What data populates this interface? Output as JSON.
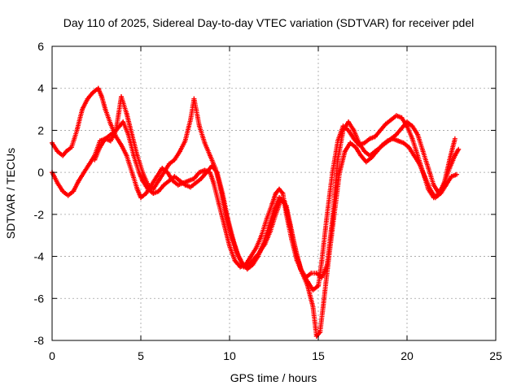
{
  "chart_data": {
    "type": "scatter",
    "title": "Day 110 of 2025, Sidereal Day-to-day VTEC variation (SDTVAR) for receiver pdel",
    "xlabel": "GPS time / hours",
    "ylabel": "SDTVAR / TECUs",
    "xlim": [
      0,
      25
    ],
    "ylim": [
      -8,
      6
    ],
    "xticks": [
      "0",
      "5",
      "10",
      "15",
      "20",
      "25"
    ],
    "yticks": [
      "-8",
      "-6",
      "-4",
      "-2",
      "0",
      "2",
      "4",
      "6"
    ],
    "grid": true,
    "marker": "plus",
    "color": "#ff0000",
    "series": [
      {
        "x": [
          0.0,
          0.3,
          0.6,
          0.8,
          1.1,
          1.4,
          1.7,
          2.0,
          2.3,
          2.6,
          2.8,
          3.0,
          3.3,
          3.6,
          3.9,
          4.2,
          4.5,
          4.8,
          5.0,
          5.3,
          5.6,
          5.9,
          6.2,
          6.5,
          6.8,
          7.1,
          7.4,
          7.7,
          8.0,
          8.3,
          8.6,
          8.9,
          9.1,
          9.4,
          9.7,
          10.0,
          10.3,
          10.6,
          10.9,
          11.2,
          11.5,
          11.8,
          12.1,
          12.4,
          12.6,
          12.8,
          13.0,
          13.2,
          13.5,
          13.8,
          14.1,
          14.4,
          14.7,
          15.0,
          15.2,
          15.5,
          15.8,
          16.1,
          16.4,
          16.7,
          17.0,
          17.3,
          17.6,
          17.9,
          18.2,
          18.5,
          18.8,
          19.1,
          19.4,
          19.7,
          20.0,
          20.3,
          20.6,
          20.9,
          21.2,
          21.5,
          21.8,
          22.1,
          22.4,
          22.7,
          22.9
        ],
        "y": [
          1.4,
          1.0,
          0.8,
          1.0,
          1.2,
          2.0,
          3.0,
          3.5,
          3.8,
          4.0,
          3.6,
          3.0,
          2.3,
          1.7,
          1.3,
          0.8,
          0.0,
          -0.8,
          -1.2,
          -1.0,
          -0.6,
          -0.2,
          0.2,
          0.0,
          -0.4,
          -0.6,
          -0.5,
          -0.4,
          -0.3,
          0.0,
          0.1,
          0.0,
          -0.5,
          -1.5,
          -2.5,
          -3.5,
          -4.2,
          -4.5,
          -4.4,
          -4.0,
          -3.6,
          -3.0,
          -2.2,
          -1.5,
          -1.0,
          -0.8,
          -1.0,
          -2.0,
          -3.2,
          -4.2,
          -4.8,
          -5.2,
          -5.6,
          -5.4,
          -4.2,
          -2.0,
          0.0,
          1.5,
          2.2,
          2.0,
          1.6,
          1.3,
          1.4,
          1.6,
          1.7,
          2.0,
          2.3,
          2.5,
          2.7,
          2.6,
          2.2,
          1.6,
          0.8,
          0.0,
          -0.8,
          -1.2,
          -1.0,
          -0.5,
          0.2,
          0.8,
          1.1
        ]
      },
      {
        "x": [
          0.0,
          0.3,
          0.6,
          0.9,
          1.2,
          1.5,
          1.8,
          2.1,
          2.4,
          2.7,
          3.0,
          3.3,
          3.6,
          3.8,
          4.0,
          4.3,
          4.6,
          4.9,
          5.1,
          5.4,
          5.7,
          6.0,
          6.3,
          6.6,
          6.9,
          7.2,
          7.5,
          7.8,
          8.1,
          8.4,
          8.7,
          9.0,
          9.3,
          9.6,
          9.9,
          10.2,
          10.5,
          10.8,
          11.1,
          11.4,
          11.7,
          12.0,
          12.3,
          12.6,
          12.9,
          13.2,
          13.5,
          13.8,
          14.1,
          14.4,
          14.7,
          14.9,
          15.1,
          15.3,
          15.6,
          15.9,
          16.2,
          16.5,
          16.8,
          17.1,
          17.4,
          17.7,
          18.0,
          18.3,
          18.6,
          18.9,
          19.2,
          19.5,
          19.8,
          20.1,
          20.4,
          20.7,
          21.0,
          21.3,
          21.6,
          21.9,
          22.2,
          22.5,
          22.8
        ],
        "y": [
          0.0,
          -0.5,
          -0.9,
          -1.1,
          -0.9,
          -0.4,
          0.0,
          0.4,
          0.8,
          1.5,
          1.6,
          1.8,
          2.0,
          2.2,
          2.4,
          1.8,
          0.8,
          0.0,
          -0.4,
          -0.8,
          -1.0,
          -0.9,
          -0.6,
          -0.4,
          -0.2,
          -0.4,
          -0.6,
          -0.7,
          -0.5,
          -0.3,
          0.0,
          0.3,
          0.0,
          -1.0,
          -2.2,
          -3.2,
          -4.0,
          -4.5,
          -4.4,
          -4.1,
          -3.8,
          -3.4,
          -2.8,
          -2.0,
          -1.3,
          -1.6,
          -2.8,
          -4.0,
          -4.8,
          -5.4,
          -6.4,
          -7.8,
          -7.6,
          -6.2,
          -4.0,
          -2.0,
          0.0,
          1.0,
          1.4,
          1.2,
          0.8,
          0.5,
          0.7,
          1.0,
          1.3,
          1.5,
          1.6,
          1.5,
          1.4,
          1.2,
          0.8,
          0.4,
          -0.2,
          -0.8,
          -1.2,
          -1.0,
          -0.6,
          -0.2,
          -0.1
        ]
      },
      {
        "x": [
          2.4,
          2.7,
          3.0,
          3.3,
          3.6,
          3.9,
          4.2,
          4.5,
          4.8,
          5.1,
          5.4,
          5.7,
          6.0,
          6.3,
          6.6,
          6.9,
          7.2,
          7.5,
          7.8,
          8.0,
          8.3,
          8.6,
          8.9,
          9.2,
          9.5,
          9.8,
          10.1,
          10.4,
          10.7,
          11.0,
          11.3,
          11.6,
          11.9,
          12.2,
          12.5,
          12.8,
          13.1,
          13.4,
          13.7,
          14.0,
          14.3,
          14.6,
          14.9,
          15.2,
          15.5,
          15.8,
          16.1,
          16.4,
          16.7,
          17.0,
          17.3,
          17.6,
          17.9,
          18.2,
          18.5,
          18.8,
          19.1,
          19.4,
          19.7,
          20.0,
          20.3,
          20.6,
          20.9,
          21.2,
          21.5,
          21.8,
          22.1,
          22.4,
          22.7
        ],
        "y": [
          0.6,
          1.2,
          1.6,
          1.5,
          2.0,
          3.6,
          2.8,
          1.8,
          0.8,
          0.0,
          -0.6,
          -0.8,
          -0.4,
          0.0,
          0.4,
          0.6,
          1.0,
          1.5,
          2.5,
          3.5,
          2.2,
          1.4,
          0.8,
          0.2,
          -0.8,
          -2.0,
          -3.0,
          -3.8,
          -4.3,
          -4.6,
          -4.4,
          -4.0,
          -3.4,
          -2.6,
          -1.8,
          -1.2,
          -1.4,
          -2.5,
          -3.6,
          -4.6,
          -5.0,
          -4.8,
          -4.8,
          -5.0,
          -4.4,
          -2.2,
          0.6,
          2.0,
          2.4,
          2.0,
          1.4,
          1.0,
          0.8,
          1.0,
          1.2,
          1.4,
          1.6,
          1.8,
          2.1,
          2.4,
          2.2,
          1.8,
          1.0,
          0.2,
          -0.6,
          -1.0,
          -0.5,
          0.6,
          1.6
        ]
      }
    ]
  }
}
